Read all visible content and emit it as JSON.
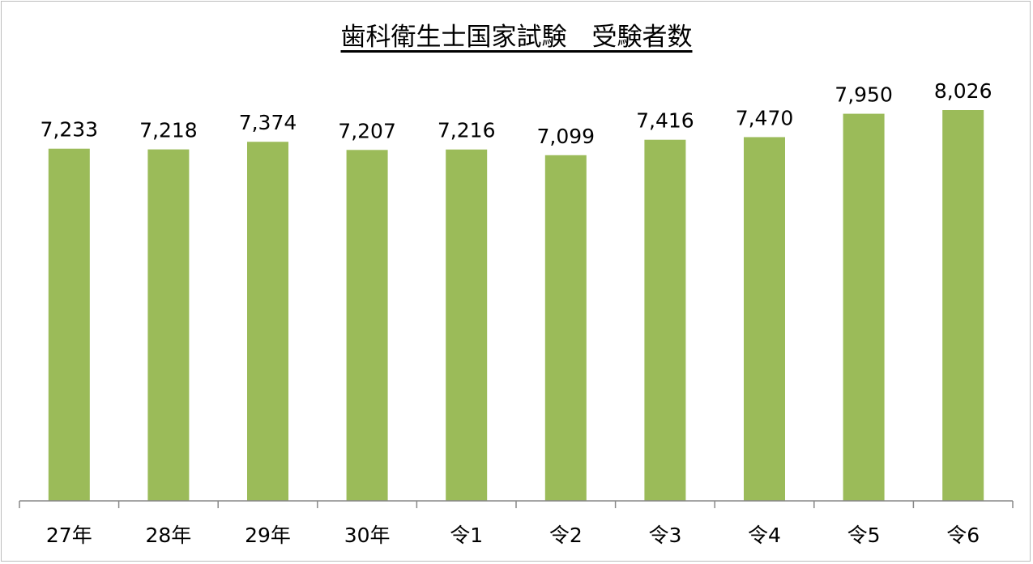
{
  "chart_data": {
    "type": "bar",
    "title": "歯科衛生士国家試験　受験者数",
    "categories": [
      "27年",
      "28年",
      "29年",
      "30年",
      "令1",
      "令2",
      "令3",
      "令4",
      "令5",
      "令6"
    ],
    "values": [
      7233,
      7218,
      7374,
      7207,
      7216,
      7099,
      7416,
      7470,
      7950,
      8026
    ],
    "data_labels": [
      "7,233",
      "7,218",
      "7,374",
      "7,207",
      "7,216",
      "7,099",
      "7,416",
      "7,470",
      "7,950",
      "8,026"
    ],
    "xlabel": "",
    "ylabel": "",
    "ylim": [
      0,
      9000
    ],
    "y_axis_visible": false,
    "grid": false,
    "legend": "none",
    "bar_color": "#9bbb59"
  }
}
